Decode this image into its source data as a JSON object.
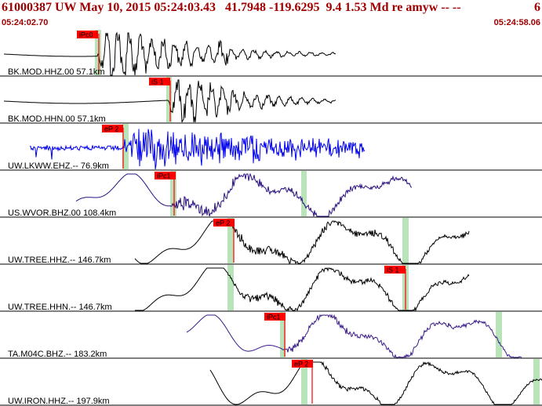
{
  "header": {
    "title": "61000387 UW May 10, 2015 05:24:03.43   41.7948 -119.6295  9.4 1.53 Md re amyw -- --",
    "title_right": "6",
    "time_start": "05:24:02.70",
    "time_end": "05:24:58.06"
  },
  "colors": {
    "header_text": "#a00000",
    "pick_flag": "#ff0000",
    "pick_line": "#ff0000",
    "window_band": "#b9e3b9",
    "divider": "#000000"
  },
  "traces": [
    {
      "label": "BK.MOD.HHZ.00 57.1km",
      "color": "#000000",
      "picks": [
        {
          "label": "iPc0"
        }
      ]
    },
    {
      "label": "BK.MOD.HHN.00 57.1km",
      "color": "#000000",
      "picks": [
        {
          "label": "iS 1"
        }
      ]
    },
    {
      "label": "UW.LKWW.EHZ.-- 76.9km",
      "color": "#0000ee",
      "picks": [
        {
          "label": "eP 2"
        }
      ]
    },
    {
      "label": "US.WVOR.BHZ.00 108.4km",
      "color": "#2a1080",
      "picks": [
        {
          "label": "iPc1"
        }
      ]
    },
    {
      "label": "UW.TREE.HHZ.-- 146.7km",
      "color": "#000000",
      "picks": [
        {
          "label": "eP 2"
        }
      ]
    },
    {
      "label": "UW.TREE.HHN.-- 146.7km",
      "color": "#000000",
      "picks": [
        {
          "label": "iS 1"
        }
      ]
    },
    {
      "label": "TA.M04C.BHZ.-- 183.2km",
      "color": "#3a1a8a",
      "picks": [
        {
          "label": "iPc1"
        }
      ]
    },
    {
      "label": "UW.IRON.HHZ.-- 197.9km",
      "color": "#000000",
      "picks": [
        {
          "label": "eP 2"
        }
      ]
    }
  ]
}
